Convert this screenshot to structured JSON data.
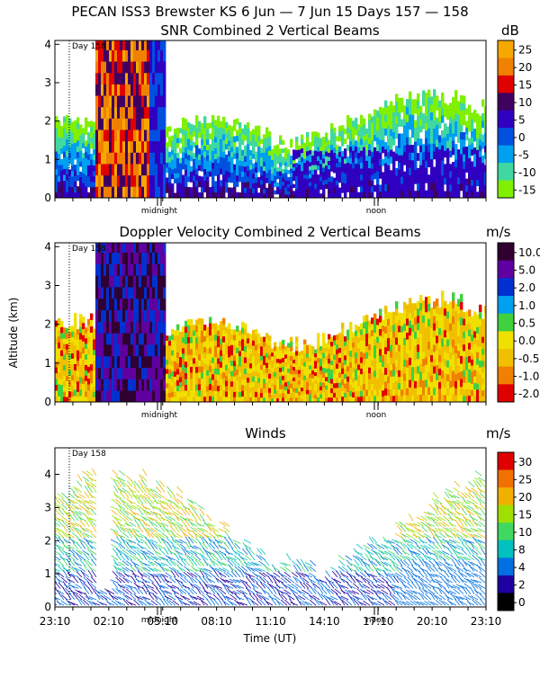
{
  "header": {
    "title": "PECAN ISS3 Brewster KS    6 Jun —  7 Jun 15 Days 157 — 158"
  },
  "x_axis": {
    "label": "Time (UT)",
    "ticks": [
      "23:10",
      "02:10",
      "05:10",
      "08:10",
      "11:10",
      "14:10",
      "17:10",
      "20:10",
      "23:10"
    ],
    "midnight_label": "midnight",
    "noon_label": "noon",
    "day_label": "Day 158"
  },
  "y_axis_label": "Altitude (km)",
  "chart_data": [
    {
      "type": "heatmap",
      "title": "SNR Combined 2 Vertical Beams",
      "unit": "dB",
      "ylim": [
        0,
        4.1
      ],
      "yticks": [
        "0",
        "1",
        "2",
        "3",
        "4"
      ],
      "colorbar": {
        "labels": [
          "25",
          "20",
          "15",
          "10",
          "5",
          "0",
          "-5",
          "-10",
          "-15"
        ],
        "colors": [
          "#f5a800",
          "#f08000",
          "#e00000",
          "#400060",
          "#3000c0",
          "#0050e0",
          "#00a0f0",
          "#40d8a0",
          "#80f000"
        ]
      }
    },
    {
      "type": "heatmap",
      "title": "Doppler Velocity Combined 2 Vertical Beams",
      "unit": "m/s",
      "ylim": [
        0,
        4.1
      ],
      "yticks": [
        "0",
        "1",
        "2",
        "3",
        "4"
      ],
      "colorbar": {
        "labels": [
          "10.0",
          "5.0",
          "2.0",
          "1.0",
          "0.5",
          "0.0",
          "-0.5",
          "-1.0",
          "-2.0"
        ],
        "colors": [
          "#300030",
          "#6000a0",
          "#0030d0",
          "#00a0f0",
          "#40d040",
          "#f0e000",
          "#f0c000",
          "#f08000",
          "#e00000"
        ]
      }
    },
    {
      "type": "scatter",
      "title": "Winds",
      "unit": "m/s",
      "ylim": [
        0,
        4.8
      ],
      "yticks": [
        "0",
        "1",
        "2",
        "3",
        "4"
      ],
      "colorbar": {
        "labels": [
          "30",
          "25",
          "20",
          "15",
          "10",
          "8",
          "4",
          "2",
          "0"
        ],
        "colors": [
          "#e00000",
          "#f07000",
          "#f0b000",
          "#a0e000",
          "#40d860",
          "#00c0c0",
          "#0070e0",
          "#2000a0",
          "#000000"
        ]
      }
    }
  ]
}
